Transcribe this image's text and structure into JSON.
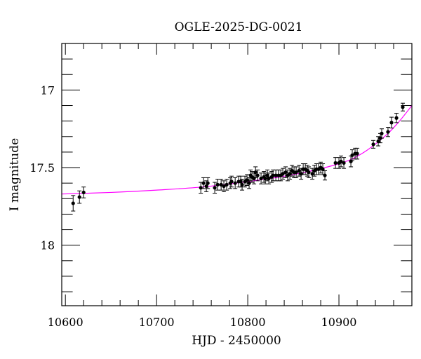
{
  "chart_data": {
    "type": "scatter",
    "title": "OGLE-2025-DG-0021",
    "xlabel": "HJD - 2450000",
    "ylabel": "I magnitude",
    "xlim": [
      10596,
      10980
    ],
    "ylim": [
      18.39,
      16.7
    ],
    "y_inverted": true,
    "grid": false,
    "x_ticks": [
      "10600",
      "10700",
      "10800",
      "10900"
    ],
    "x_tick_values": [
      10600,
      10700,
      10800,
      10900
    ],
    "y_ticks": [
      "17",
      "17.5",
      "18"
    ],
    "y_tick_values": [
      17,
      17.5,
      18
    ],
    "x_minor_step": 20,
    "y_minor_step": 0.1,
    "colors": {
      "points": "#000000",
      "model": "#ff00ff",
      "axes": "#000000"
    },
    "series": [
      {
        "kind": "data_points_with_errorbars",
        "points": [
          [
            10608.5,
            17.73,
            0.05
          ],
          [
            10615.4,
            17.69,
            0.04
          ],
          [
            10620.0,
            17.66,
            0.035
          ],
          [
            10748.5,
            17.63,
            0.035
          ],
          [
            10751.5,
            17.6,
            0.035
          ],
          [
            10754.6,
            17.62,
            0.035
          ],
          [
            10756.2,
            17.6,
            0.035
          ],
          [
            10763.8,
            17.63,
            0.035
          ],
          [
            10766.9,
            17.61,
            0.035
          ],
          [
            10770.8,
            17.61,
            0.035
          ],
          [
            10773.8,
            17.62,
            0.035
          ],
          [
            10776.9,
            17.61,
            0.035
          ],
          [
            10780.8,
            17.6,
            0.035
          ],
          [
            10782.3,
            17.59,
            0.035
          ],
          [
            10786.2,
            17.6,
            0.035
          ],
          [
            10790.0,
            17.59,
            0.035
          ],
          [
            10792.3,
            17.59,
            0.035
          ],
          [
            10793.8,
            17.61,
            0.035
          ],
          [
            10796.9,
            17.59,
            0.035
          ],
          [
            10799.2,
            17.58,
            0.035
          ],
          [
            10801.5,
            17.6,
            0.035
          ],
          [
            10803.1,
            17.55,
            0.035
          ],
          [
            10804.6,
            17.56,
            0.035
          ],
          [
            10806.9,
            17.57,
            0.035
          ],
          [
            10808.5,
            17.53,
            0.035
          ],
          [
            10810.8,
            17.55,
            0.035
          ],
          [
            10814.6,
            17.57,
            0.035
          ],
          [
            10817.7,
            17.56,
            0.035
          ],
          [
            10819.2,
            17.57,
            0.035
          ],
          [
            10821.5,
            17.55,
            0.035
          ],
          [
            10823.1,
            17.57,
            0.035
          ],
          [
            10826.2,
            17.56,
            0.035
          ],
          [
            10827.7,
            17.55,
            0.035
          ],
          [
            10830.8,
            17.55,
            0.035
          ],
          [
            10833.8,
            17.55,
            0.035
          ],
          [
            10836.2,
            17.55,
            0.035
          ],
          [
            10838.5,
            17.54,
            0.035
          ],
          [
            10841.5,
            17.53,
            0.035
          ],
          [
            10843.8,
            17.55,
            0.035
          ],
          [
            10846.2,
            17.54,
            0.035
          ],
          [
            10848.5,
            17.52,
            0.035
          ],
          [
            10850.8,
            17.53,
            0.035
          ],
          [
            10853.1,
            17.53,
            0.035
          ],
          [
            10856.2,
            17.52,
            0.035
          ],
          [
            10858.5,
            17.54,
            0.035
          ],
          [
            10860.8,
            17.51,
            0.035
          ],
          [
            10863.1,
            17.51,
            0.035
          ],
          [
            10865.4,
            17.52,
            0.035
          ],
          [
            10866.9,
            17.53,
            0.035
          ],
          [
            10870.8,
            17.54,
            0.035
          ],
          [
            10873.1,
            17.52,
            0.035
          ],
          [
            10875.4,
            17.51,
            0.035
          ],
          [
            10877.7,
            17.51,
            0.035
          ],
          [
            10880.0,
            17.5,
            0.035
          ],
          [
            10882.3,
            17.51,
            0.035
          ],
          [
            10884.6,
            17.55,
            0.03
          ],
          [
            10896.2,
            17.47,
            0.035
          ],
          [
            10900.0,
            17.47,
            0.035
          ],
          [
            10902.3,
            17.46,
            0.035
          ],
          [
            10905.4,
            17.47,
            0.035
          ],
          [
            10913.1,
            17.46,
            0.035
          ],
          [
            10914.6,
            17.42,
            0.035
          ],
          [
            10917.7,
            17.41,
            0.035
          ],
          [
            10920.0,
            17.41,
            0.035
          ],
          [
            10937.7,
            17.35,
            0.025
          ],
          [
            10943.1,
            17.33,
            0.03
          ],
          [
            10945.4,
            17.31,
            0.03
          ],
          [
            10946.9,
            17.28,
            0.03
          ],
          [
            10953.8,
            17.27,
            0.03
          ],
          [
            10957.7,
            17.21,
            0.035
          ],
          [
            10963.1,
            17.18,
            0.03
          ],
          [
            10970.0,
            17.11,
            0.025
          ]
        ]
      },
      {
        "kind": "model_curve",
        "points": [
          [
            10596,
            17.67
          ],
          [
            10650,
            17.66
          ],
          [
            10700,
            17.645
          ],
          [
            10750,
            17.625
          ],
          [
            10800,
            17.59
          ],
          [
            10850,
            17.545
          ],
          [
            10900,
            17.475
          ],
          [
            10925,
            17.41
          ],
          [
            10950,
            17.3
          ],
          [
            10965,
            17.21
          ],
          [
            10980,
            17.1
          ]
        ]
      }
    ]
  }
}
